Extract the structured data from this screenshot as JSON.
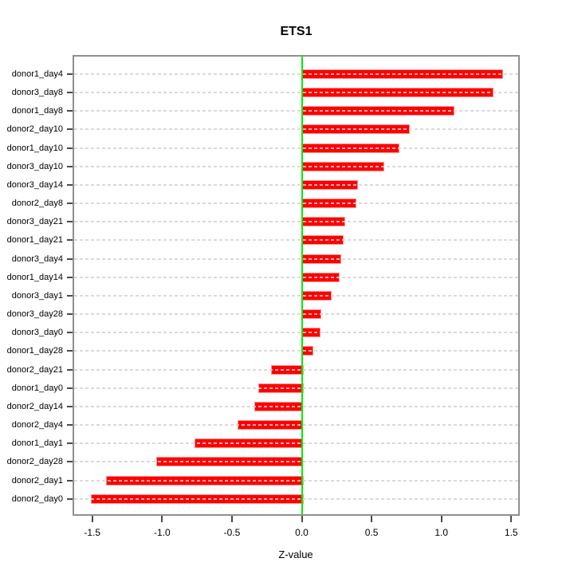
{
  "title": "ETS1",
  "chart_data": {
    "type": "bar",
    "orientation": "horizontal",
    "title": "ETS1",
    "xlabel": "Z-value",
    "ylabel": "",
    "categories": [
      "donor1_day4",
      "donor3_day8",
      "donor1_day8",
      "donor2_day10",
      "donor1_day10",
      "donor3_day10",
      "donor3_day14",
      "donor2_day8",
      "donor3_day21",
      "donor1_day21",
      "donor3_day4",
      "donor1_day14",
      "donor3_day1",
      "donor3_day28",
      "donor3_day0",
      "donor1_day28",
      "donor2_day21",
      "donor1_day0",
      "donor2_day14",
      "donor2_day4",
      "donor1_day1",
      "donor2_day28",
      "donor2_day1",
      "donor2_day0"
    ],
    "values": [
      1.43,
      1.36,
      1.08,
      0.76,
      0.69,
      0.58,
      0.39,
      0.38,
      0.3,
      0.29,
      0.27,
      0.26,
      0.2,
      0.13,
      0.12,
      0.07,
      -0.22,
      -0.31,
      -0.34,
      -0.46,
      -0.77,
      -1.04,
      -1.4,
      -1.51
    ],
    "xlim": [
      -1.63,
      1.55
    ],
    "xticks": [
      -1.5,
      -1.0,
      -0.5,
      0.0,
      0.5,
      1.0,
      1.5
    ],
    "xtick_labels": [
      "-1.5",
      "-1.0",
      "-0.5",
      "0.0",
      "0.5",
      "1.0",
      "1.5"
    ],
    "grid": "dashed horizontal line per row, drawn over bars",
    "legend": null,
    "colors": {
      "bar_fill": "#ff0000",
      "bar_edge": "#ff9090",
      "zero_line": "#00ee00",
      "grid_line": "#d3d3d3",
      "box_border": "#8f8f8f",
      "tick": "#4a4a4a",
      "text": "#000000"
    }
  }
}
